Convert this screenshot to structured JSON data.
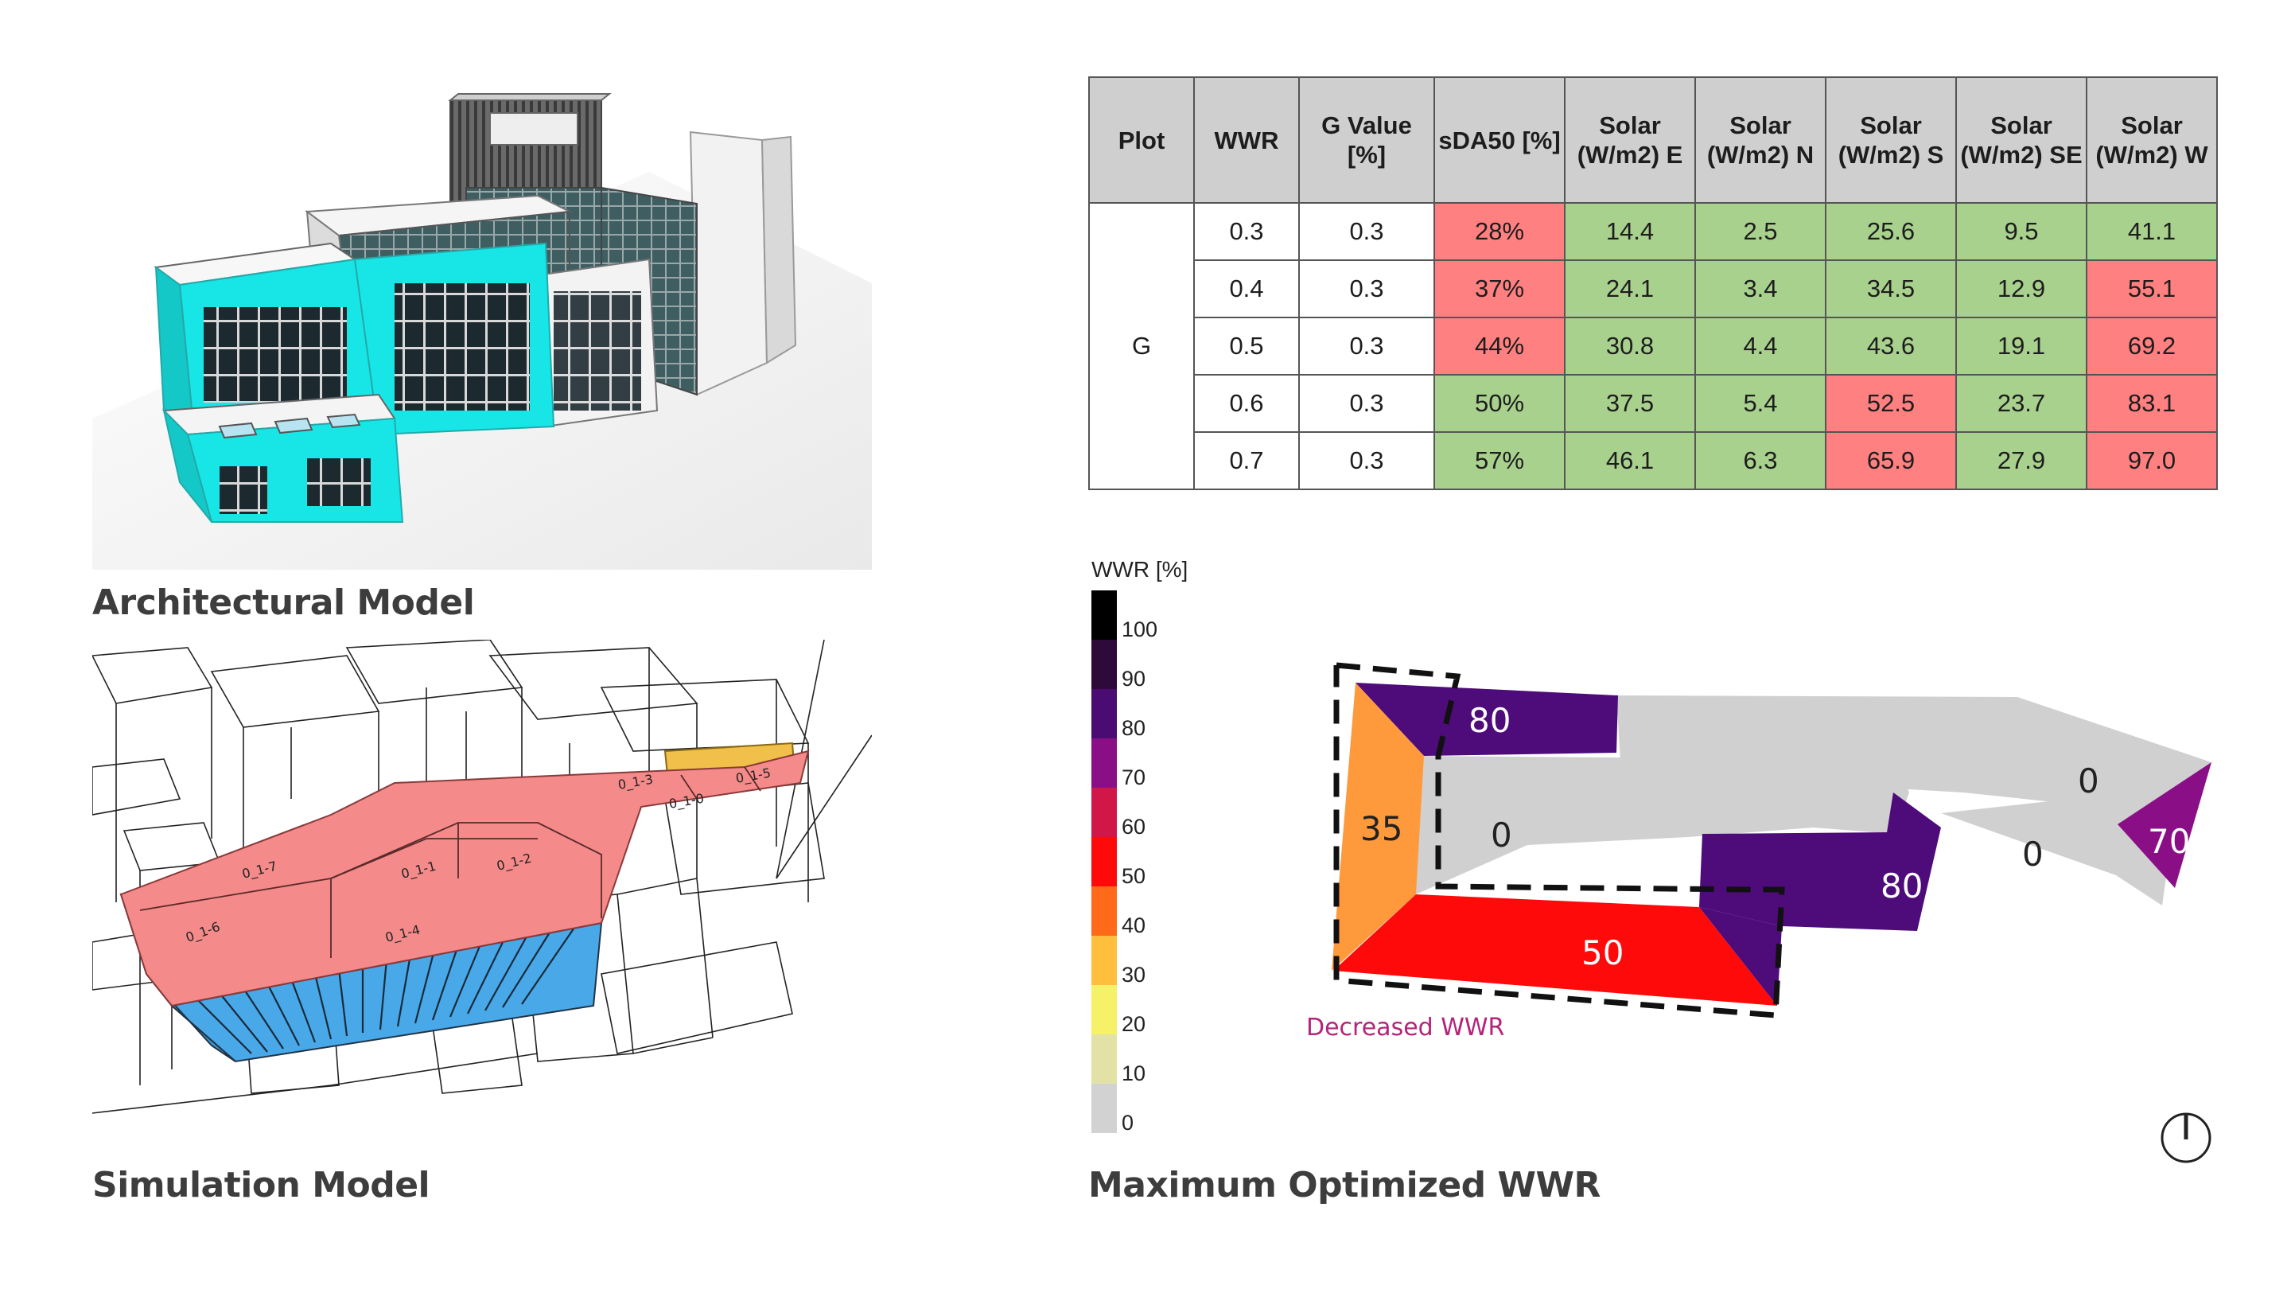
{
  "captions": {
    "architectural": "Architectural Model",
    "simulation": "Simulation Model",
    "optimized": "Maximum Optimized WWR"
  },
  "table": {
    "headers": [
      "Plot",
      "WWR",
      "G Value [%]",
      "sDA50 [%]",
      "Solar (W/m2) E",
      "Solar (W/m2) N",
      "Solar (W/m2) S",
      "Solar (W/m2) SE",
      "Solar (W/m2) W"
    ],
    "header_lines": [
      [
        "Plot"
      ],
      [
        "WWR"
      ],
      [
        "G Value",
        "[%]"
      ],
      [
        "sDA50 [%]"
      ],
      [
        "Solar",
        "(W/m2) E"
      ],
      [
        "Solar",
        "(W/m2) N"
      ],
      [
        "Solar",
        "(W/m2) S"
      ],
      [
        "Solar",
        "(W/m2) SE"
      ],
      [
        "Solar",
        "(W/m2) W"
      ]
    ],
    "plot_label": "G",
    "rows": [
      {
        "wwr": "0.3",
        "g": "0.3",
        "sda": "28%",
        "e": "14.4",
        "n": "2.5",
        "s": "25.6",
        "se": "9.5",
        "w": "41.1"
      },
      {
        "wwr": "0.4",
        "g": "0.3",
        "sda": "37%",
        "e": "24.1",
        "n": "3.4",
        "s": "34.5",
        "se": "12.9",
        "w": "55.1"
      },
      {
        "wwr": "0.5",
        "g": "0.3",
        "sda": "44%",
        "e": "30.8",
        "n": "4.4",
        "s": "43.6",
        "se": "19.1",
        "w": "69.2"
      },
      {
        "wwr": "0.6",
        "g": "0.3",
        "sda": "50%",
        "e": "37.5",
        "n": "5.4",
        "s": "52.5",
        "se": "23.7",
        "w": "83.1"
      },
      {
        "wwr": "0.7",
        "g": "0.3",
        "sda": "57%",
        "e": "46.1",
        "n": "6.3",
        "s": "65.9",
        "se": "27.9",
        "w": "97.0"
      }
    ],
    "status_colors": {
      "good": "#a9d18e",
      "bad": "#ff8080"
    }
  },
  "legend": {
    "title": "WWR [%]",
    "ticks": [
      "100",
      "90",
      "80",
      "70",
      "60",
      "50",
      "40",
      "30",
      "20",
      "10",
      "0"
    ],
    "colors": [
      "#000000",
      "#2e0a3a",
      "#4a0b73",
      "#8a0f86",
      "#d11748",
      "#ff0a0a",
      "#ff6a1a",
      "#ffbe3c",
      "#f5f26a",
      "#e3e2a6",
      "#d2d2d2"
    ]
  },
  "wwr_map": {
    "labels": [
      "80",
      "35",
      "0",
      "0",
      "80",
      "0",
      "70",
      "50"
    ],
    "note": "Decreased WWR"
  },
  "sim_labels": [
    "0_1-7",
    "0_1-1",
    "0_1-2",
    "0_1-6",
    "0_1-4",
    "0_1-3",
    "0_1-0",
    "0_1-5"
  ]
}
